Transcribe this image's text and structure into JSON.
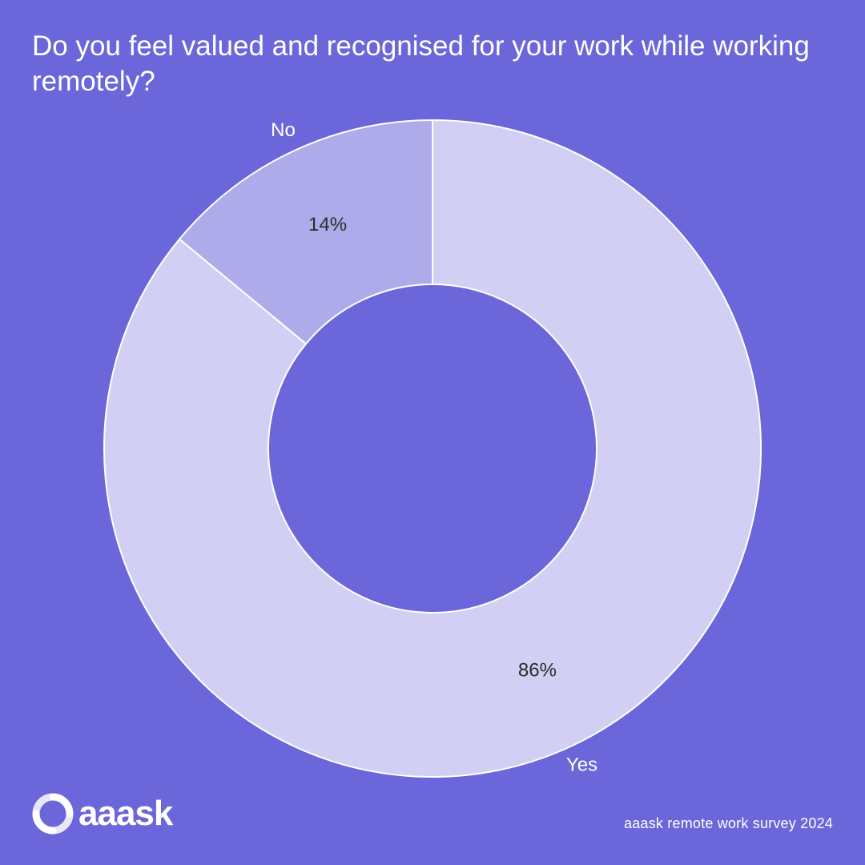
{
  "chart_data": {
    "type": "pie",
    "title": "Do you feel valued and recognised for your work while working remotely?",
    "donut": true,
    "slices": [
      {
        "label": "Yes",
        "value": 86,
        "value_label": "86%",
        "color": "#d1d0f4"
      },
      {
        "label": "No",
        "value": 14,
        "value_label": "14%",
        "color": "#aeabeb"
      }
    ]
  },
  "colors": {
    "background": "#6b67da",
    "slice_border": "#ffffff",
    "value_text": "#2b2b2b",
    "label_text": "#ffffff"
  },
  "branding": {
    "logo_text": "aaask",
    "logo_icon": "circular-arrows-icon"
  },
  "footer": {
    "source": "aaask remote work survey 2024"
  }
}
